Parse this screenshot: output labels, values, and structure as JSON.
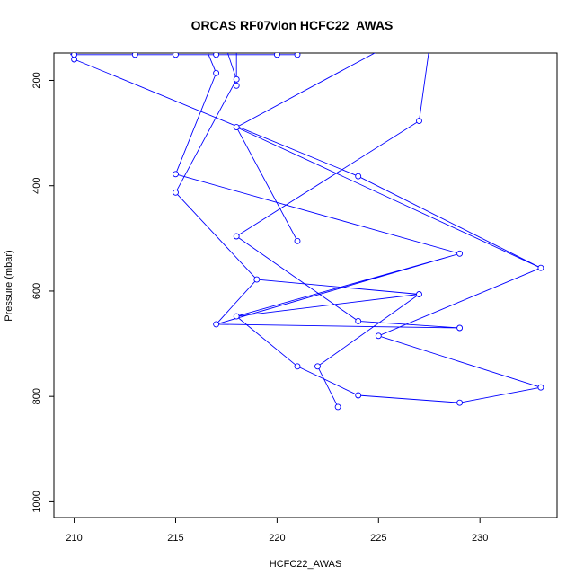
{
  "chart_data": {
    "type": "line",
    "title": "ORCAS RF07vlon HCFC22_AWAS",
    "xlabel": "HCFC22_AWAS",
    "ylabel": "Pressure (mbar)",
    "xlim": [
      209,
      233.8
    ],
    "ylim": [
      1030,
      148
    ],
    "y_reversed": true,
    "grid": false,
    "legend": "none",
    "series_color": "#0000ff",
    "xticks": [
      210,
      215,
      220,
      225,
      230
    ],
    "yticks": [
      200,
      400,
      600,
      800,
      1000
    ],
    "x": [
      223,
      222,
      227,
      218,
      224,
      233,
      221,
      209.8,
      210,
      229,
      219,
      227,
      217,
      229,
      221,
      229,
      233,
      225,
      218,
      224,
      229,
      219,
      218,
      218,
      210,
      211,
      215,
      213,
      213,
      215,
      217,
      217.5,
      216,
      220,
      221,
      218,
      225,
      227,
      227.5
    ],
    "y": [
      820,
      743,
      606,
      496,
      382,
      556,
      505,
      151,
      160,
      670,
      578,
      277,
      663,
      529,
      743,
      812,
      783,
      685,
      648,
      657,
      671,
      120,
      198,
      210,
      413,
      378,
      186,
      151,
      151,
      151,
      151,
      110,
      120,
      151,
      151,
      289,
      144,
      130,
      110
    ],
    "segments": [
      [
        [
          223,
          820
        ],
        [
          222,
          743
        ],
        [
          227,
          606
        ]
      ],
      [
        [
          218,
          496
        ],
        [
          224,
          657
        ],
        [
          229,
          670
        ],
        [
          217,
          663
        ],
        [
          229,
          529
        ],
        [
          218,
          648
        ],
        [
          227,
          606
        ]
      ],
      [
        [
          221,
          743
        ],
        [
          218,
          648
        ],
        [
          221,
          743
        ],
        [
          224,
          798
        ],
        [
          229,
          812
        ],
        [
          233,
          783
        ],
        [
          225,
          685
        ],
        [
          233,
          556
        ],
        [
          218,
          289
        ],
        [
          225,
          144
        ]
      ],
      [
        [
          215,
          378
        ],
        [
          229,
          529
        ]
      ],
      [
        [
          215,
          413
        ],
        [
          219,
          578
        ],
        [
          227,
          606
        ]
      ],
      [
        [
          219,
          578
        ],
        [
          217,
          663
        ]
      ],
      [
        [
          218,
          496
        ],
        [
          227,
          277
        ],
        [
          227.5,
          140
        ]
      ],
      [
        [
          221,
          505
        ],
        [
          218,
          289
        ]
      ],
      [
        [
          215,
          378
        ],
        [
          217,
          186
        ],
        [
          216.5,
          140
        ]
      ],
      [
        [
          215,
          413
        ],
        [
          218,
          198
        ],
        [
          217.5,
          140
        ]
      ],
      [
        [
          218,
          210
        ],
        [
          218,
          140
        ]
      ],
      [
        [
          210,
          160
        ],
        [
          224,
          382
        ],
        [
          233,
          556
        ]
      ],
      [
        [
          209.8,
          151
        ],
        [
          211,
          140
        ]
      ],
      [
        [
          210,
          151
        ],
        [
          213,
          151
        ],
        [
          215,
          151
        ],
        [
          217,
          151
        ],
        [
          220,
          151
        ],
        [
          221,
          151
        ]
      ]
    ],
    "points": [
      [
        223,
        820
      ],
      [
        222,
        743
      ],
      [
        227,
        606
      ],
      [
        218,
        496
      ],
      [
        224,
        382
      ],
      [
        233,
        556
      ],
      [
        221,
        505
      ],
      [
        210,
        160
      ],
      [
        210,
        151
      ],
      [
        229,
        670
      ],
      [
        219,
        578
      ],
      [
        227,
        277
      ],
      [
        217,
        663
      ],
      [
        229,
        529
      ],
      [
        221,
        743
      ],
      [
        229,
        812
      ],
      [
        233,
        783
      ],
      [
        225,
        685
      ],
      [
        218,
        648
      ],
      [
        224,
        657
      ],
      [
        224,
        798
      ],
      [
        218,
        289
      ],
      [
        218,
        198
      ],
      [
        218,
        210
      ],
      [
        215,
        413
      ],
      [
        215,
        378
      ],
      [
        217,
        186
      ],
      [
        213,
        151
      ],
      [
        215,
        151
      ],
      [
        217,
        151
      ],
      [
        220,
        151
      ],
      [
        221,
        151
      ]
    ]
  }
}
